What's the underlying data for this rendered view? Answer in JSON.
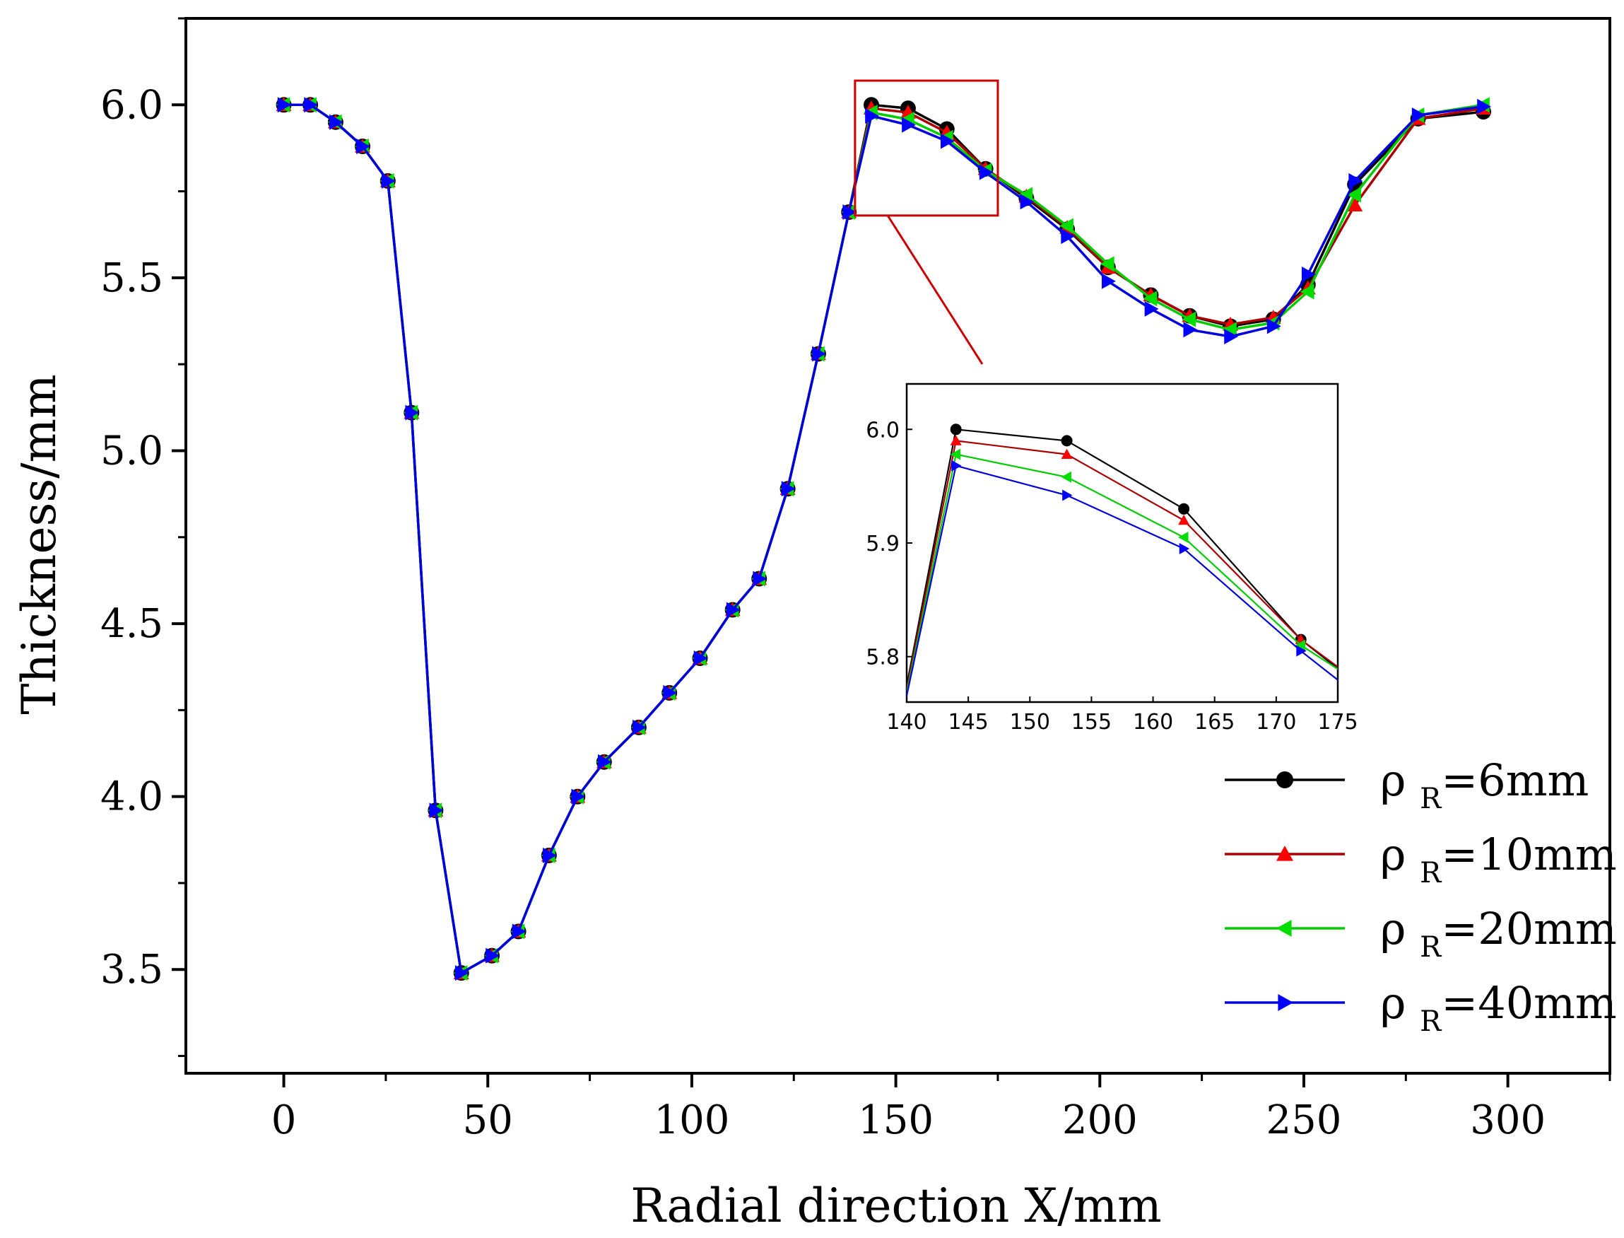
{
  "chart_data": {
    "type": "line",
    "xlabel": "Radial direction X/mm",
    "ylabel": "Thickness/mm",
    "xlim": [
      -24,
      325
    ],
    "ylim": [
      3.2,
      6.25
    ],
    "xticks": [
      0,
      50,
      100,
      150,
      200,
      250,
      300
    ],
    "xtick_labels": [
      "0",
      "50",
      "100",
      "150",
      "200",
      "250",
      "300"
    ],
    "yticks": [
      3.5,
      4.0,
      4.5,
      5.0,
      5.5,
      6.0
    ],
    "ytick_labels": [
      "3.5",
      "4.0",
      "4.5",
      "5.0",
      "5.5",
      "6.0"
    ],
    "legend_position": "bottom-right",
    "series": [
      {
        "name": "ρ R=6mm",
        "symbol": "ρ",
        "subscript": "R",
        "value_text": "=6mm",
        "color": "#000000",
        "marker_color": "#000000",
        "marker": "circle",
        "x": [
          0,
          6.5,
          12.7,
          19.3,
          25.5,
          31.3,
          37.2,
          43.5,
          51,
          57.5,
          65,
          72,
          78.5,
          87,
          94.5,
          102,
          110,
          116.5,
          123.5,
          131,
          138.5,
          144,
          153,
          162.5,
          172,
          182,
          192,
          202,
          212.5,
          222,
          232,
          242.5,
          251,
          262.5,
          278,
          294
        ],
        "y": [
          6.0,
          6.0,
          5.95,
          5.88,
          5.78,
          5.11,
          3.96,
          3.49,
          3.54,
          3.61,
          3.83,
          4.0,
          4.1,
          4.2,
          4.3,
          4.4,
          4.54,
          4.63,
          4.89,
          5.28,
          5.69,
          6.0,
          5.99,
          5.93,
          5.815,
          5.73,
          5.64,
          5.53,
          5.45,
          5.39,
          5.36,
          5.38,
          5.48,
          5.77,
          5.96,
          5.98
        ]
      },
      {
        "name": "ρ R=10mm",
        "symbol": "ρ",
        "subscript": "R",
        "value_text": "=10mm",
        "color": "#aa0000",
        "marker_color": "#ff0000",
        "marker": "triangle-up",
        "x": [
          0,
          6.5,
          12.7,
          19.3,
          25.5,
          31.3,
          37.2,
          43.5,
          51,
          57.5,
          65,
          72,
          78.5,
          87,
          94.5,
          102,
          110,
          116.5,
          123.5,
          131,
          138.5,
          144,
          153,
          162.5,
          172,
          182,
          192,
          202,
          212.5,
          222,
          232,
          242.5,
          251,
          262.5,
          278,
          294
        ],
        "y": [
          6.0,
          6.0,
          5.95,
          5.88,
          5.78,
          5.11,
          3.96,
          3.49,
          3.54,
          3.61,
          3.83,
          4.0,
          4.1,
          4.2,
          4.3,
          4.4,
          4.54,
          4.63,
          4.89,
          5.28,
          5.69,
          5.99,
          5.978,
          5.92,
          5.815,
          5.735,
          5.645,
          5.53,
          5.45,
          5.39,
          5.365,
          5.385,
          5.47,
          5.71,
          5.96,
          5.99
        ]
      },
      {
        "name": "ρ R=20mm",
        "symbol": "ρ",
        "subscript": "R",
        "value_text": "=20mm",
        "color": "#00cc00",
        "marker_color": "#00dd00",
        "marker": "triangle-left",
        "x": [
          0,
          6.5,
          12.7,
          19.3,
          25.5,
          31.3,
          37.2,
          43.5,
          51,
          57.5,
          65,
          72,
          78.5,
          87,
          94.5,
          102,
          110,
          116.5,
          123.5,
          131,
          138.5,
          144,
          153,
          162.5,
          172,
          182,
          192,
          202,
          212.5,
          222,
          232,
          242.5,
          251,
          262.5,
          278,
          294
        ],
        "y": [
          6.0,
          6.0,
          5.95,
          5.88,
          5.78,
          5.11,
          3.96,
          3.49,
          3.54,
          3.61,
          3.83,
          4.0,
          4.1,
          4.2,
          4.3,
          4.4,
          4.54,
          4.63,
          4.89,
          5.28,
          5.69,
          5.978,
          5.958,
          5.905,
          5.81,
          5.74,
          5.65,
          5.54,
          5.44,
          5.38,
          5.35,
          5.37,
          5.46,
          5.74,
          5.97,
          6.0
        ]
      },
      {
        "name": "ρ R=40mm",
        "symbol": "ρ",
        "subscript": "R",
        "value_text": "=40mm",
        "color": "#0000dd",
        "marker_color": "#0000ff",
        "marker": "triangle-right",
        "x": [
          0,
          6.5,
          12.7,
          19.3,
          25.5,
          31.3,
          37.2,
          43.5,
          51,
          57.5,
          65,
          72,
          78.5,
          87,
          94.5,
          102,
          110,
          116.5,
          123.5,
          131,
          138.5,
          144,
          153,
          162.5,
          172,
          182,
          192,
          202,
          212.5,
          222,
          232,
          242.5,
          251,
          262.5,
          278,
          294
        ],
        "y": [
          6.0,
          6.0,
          5.95,
          5.88,
          5.78,
          5.11,
          3.96,
          3.49,
          3.54,
          3.61,
          3.83,
          4.0,
          4.1,
          4.2,
          4.3,
          4.4,
          4.54,
          4.63,
          4.89,
          5.28,
          5.69,
          5.968,
          5.942,
          5.895,
          5.805,
          5.72,
          5.62,
          5.49,
          5.41,
          5.35,
          5.33,
          5.36,
          5.51,
          5.78,
          5.97,
          5.995
        ]
      }
    ],
    "inset": {
      "xlim": [
        140,
        175
      ],
      "ylim": [
        5.76,
        6.04
      ],
      "xticks": [
        140,
        145,
        150,
        155,
        160,
        165,
        170,
        175
      ],
      "xtick_labels": [
        "140",
        "145",
        "150",
        "155",
        "160",
        "165",
        "170",
        "175"
      ],
      "yticks": [
        5.8,
        5.9,
        6.0
      ],
      "ytick_labels": [
        "5.8",
        "5.9",
        "6.0"
      ],
      "zoom_region": {
        "x": [
          140,
          175
        ],
        "y": [
          5.68,
          6.07
        ]
      },
      "highlight_color": "#cc0000"
    }
  }
}
